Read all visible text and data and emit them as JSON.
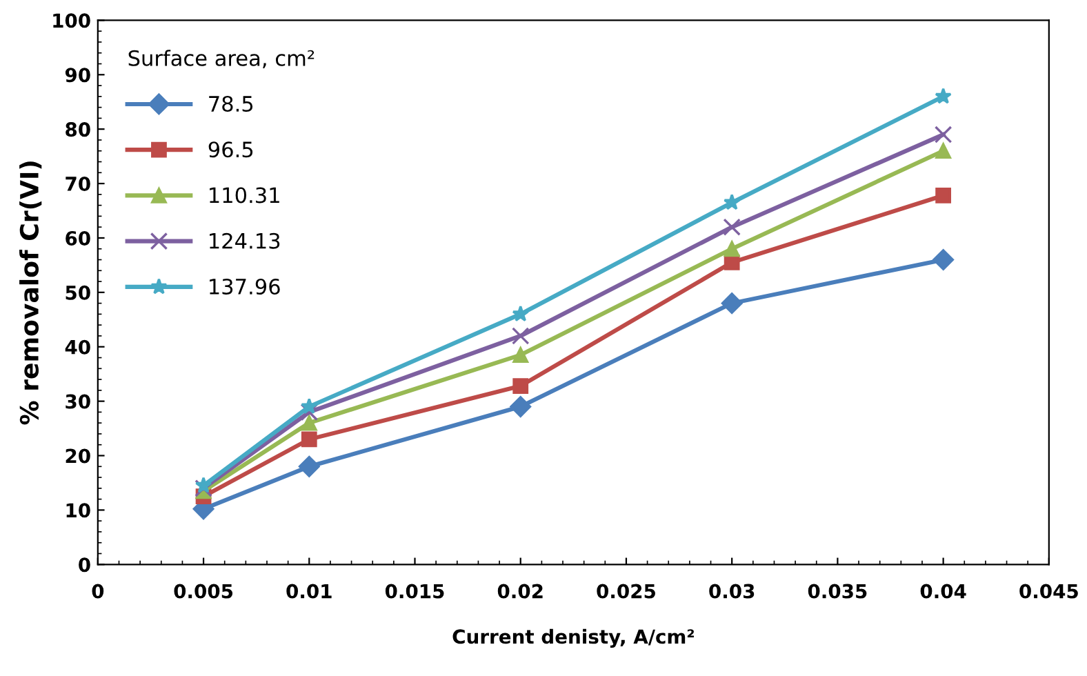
{
  "chart_data": {
    "type": "line",
    "xlabel": "Current denisty, A/cm²",
    "ylabel": "% removalof Cr(VI)",
    "legend_title": "Surface area, cm²",
    "x": [
      0.005,
      0.01,
      0.02,
      0.03,
      0.04
    ],
    "series": [
      {
        "name": "78.5",
        "color": "#4a7ebb",
        "marker": "diamond",
        "values": [
          10.2,
          18,
          29,
          48,
          56
        ]
      },
      {
        "name": "96.5",
        "color": "#be4b48",
        "marker": "square",
        "values": [
          12.5,
          23,
          32.8,
          55.5,
          67.8
        ]
      },
      {
        "name": "110.31",
        "color": "#98b954",
        "marker": "triangle",
        "values": [
          13.5,
          26,
          38.5,
          58,
          76
        ]
      },
      {
        "name": "124.13",
        "color": "#7d60a0",
        "marker": "cross",
        "values": [
          14,
          28,
          42,
          62,
          79
        ]
      },
      {
        "name": "137.96",
        "color": "#46aac5",
        "marker": "star",
        "values": [
          14.5,
          29,
          46,
          66.5,
          86
        ]
      }
    ],
    "xlim": [
      0,
      0.045
    ],
    "xticks": [
      0,
      0.005,
      0.01,
      0.015,
      0.02,
      0.025,
      0.03,
      0.035,
      0.04,
      0.045
    ],
    "ylim": [
      0,
      100
    ],
    "yticks": [
      0,
      10,
      20,
      30,
      40,
      50,
      60,
      70,
      80,
      90,
      100
    ],
    "grid": false,
    "legend": "top left",
    "line_style": "solid"
  }
}
